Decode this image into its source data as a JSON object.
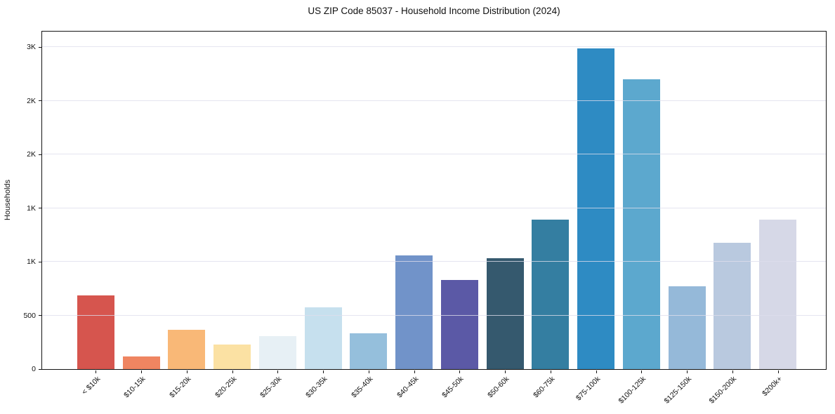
{
  "chart_data": {
    "type": "bar",
    "title": "US ZIP Code 85037 - Household Income Distribution (2024)",
    "xlabel": "",
    "ylabel": "Households",
    "categories": [
      "< $10k",
      "$10-15k",
      "$15-20k",
      "$20-25k",
      "$25-30k",
      "$30-35k",
      "$35-40k",
      "$40-45k",
      "$45-50k",
      "$50-60k",
      "$60-75k",
      "$75-100k",
      "$100-125k",
      "$125-150k",
      "$150-200k",
      "$200k+"
    ],
    "values": [
      685,
      115,
      365,
      226,
      310,
      575,
      332,
      1057,
      828,
      1030,
      1390,
      2985,
      2700,
      770,
      1180,
      1395
    ],
    "bar_colors": [
      "#d6554e",
      "#ef8561",
      "#f9b877",
      "#fbe1a3",
      "#e7f0f5",
      "#c6e0ee",
      "#95bfdc",
      "#7193c9",
      "#5b59a6",
      "#35596e",
      "#347ea1",
      "#2e8bc3",
      "#5ca8ce",
      "#95b9d9",
      "#b9c9df",
      "#d6d8e7"
    ],
    "ylim": [
      0,
      3145
    ],
    "y_ticks": [
      {
        "value": 0,
        "label": "0"
      },
      {
        "value": 500,
        "label": "500"
      },
      {
        "value": 1000,
        "label": "1K"
      },
      {
        "value": 1500,
        "label": "1K"
      },
      {
        "value": 2000,
        "label": "2K"
      },
      {
        "value": 2500,
        "label": "2K"
      },
      {
        "value": 3000,
        "label": "3K"
      }
    ],
    "grid": "horizontal",
    "legend": "none",
    "background_color": "#ffffff",
    "spine_color": "#141414",
    "grid_color": "#e6e6ef",
    "text_color": "#111111"
  }
}
